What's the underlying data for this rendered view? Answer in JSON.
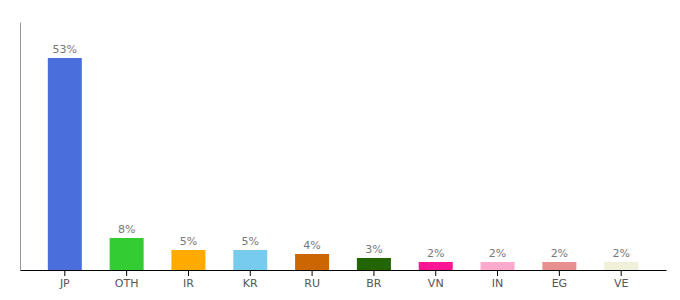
{
  "chart_data": {
    "type": "bar",
    "categories": [
      "JP",
      "OTH",
      "IR",
      "KR",
      "RU",
      "BR",
      "VN",
      "IN",
      "EG",
      "VE"
    ],
    "values": [
      53,
      8,
      5,
      5,
      4,
      3,
      2,
      2,
      2,
      2
    ],
    "value_labels": [
      "53%",
      "8%",
      "5%",
      "5%",
      "4%",
      "3%",
      "2%",
      "2%",
      "2%",
      "2%"
    ],
    "colors": [
      "#4a6fdc",
      "#33cc33",
      "#ffaa00",
      "#77ccee",
      "#cc6600",
      "#226600",
      "#ff1493",
      "#ffaacc",
      "#e89090",
      "#f0f0d8"
    ],
    "ylim": [
      0,
      62
    ],
    "data_labels": true,
    "tick_labels": "x",
    "grid": false
  }
}
